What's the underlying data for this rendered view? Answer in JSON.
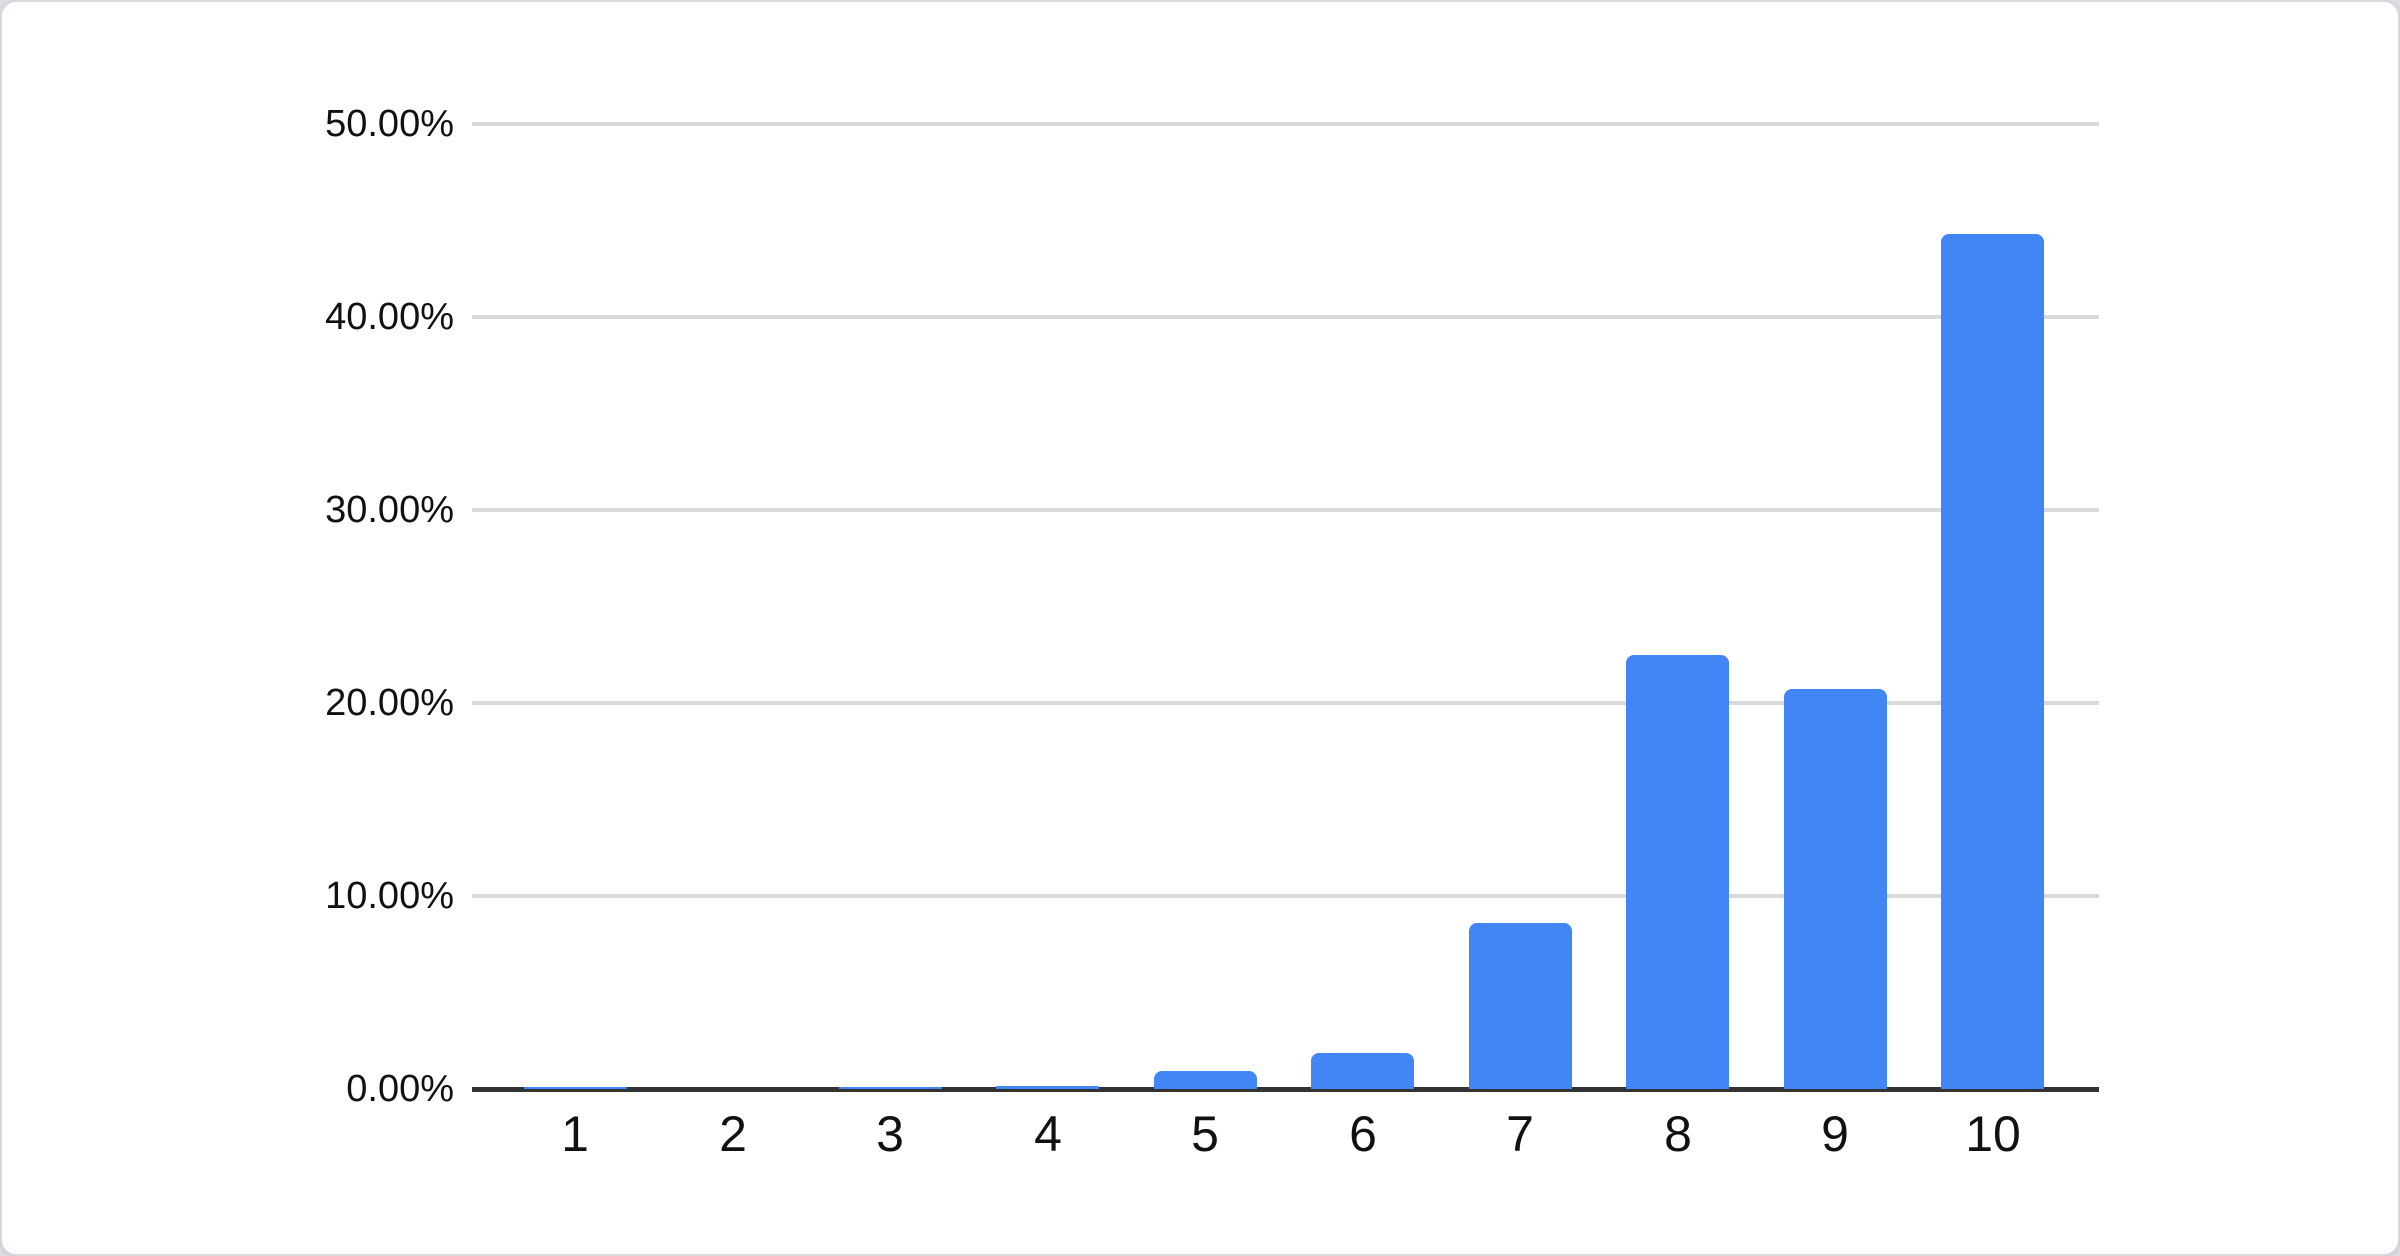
{
  "chart_data": {
    "type": "bar",
    "title": "",
    "xlabel": "",
    "ylabel": "",
    "categories": [
      "1",
      "2",
      "3",
      "4",
      "5",
      "6",
      "7",
      "8",
      "9",
      "10"
    ],
    "values": [
      0.1,
      0,
      0.1,
      0.15,
      0.95,
      1.85,
      8.6,
      22.5,
      20.7,
      44.3
    ],
    "value_unit": "%",
    "ylim": [
      0,
      50
    ],
    "y_ticks": [
      {
        "value": 0,
        "label": "0.00%"
      },
      {
        "value": 10,
        "label": "10.00%"
      },
      {
        "value": 20,
        "label": "20.00%"
      },
      {
        "value": 30,
        "label": "30.00%"
      },
      {
        "value": 40,
        "label": "40.00%"
      },
      {
        "value": 50,
        "label": "50.00%"
      }
    ],
    "grid": true,
    "legend": "none",
    "bar_color": "#4285f4",
    "gridline_color": "#d9d9d9",
    "axis_line_color": "#333333",
    "label_color": "#111111"
  }
}
